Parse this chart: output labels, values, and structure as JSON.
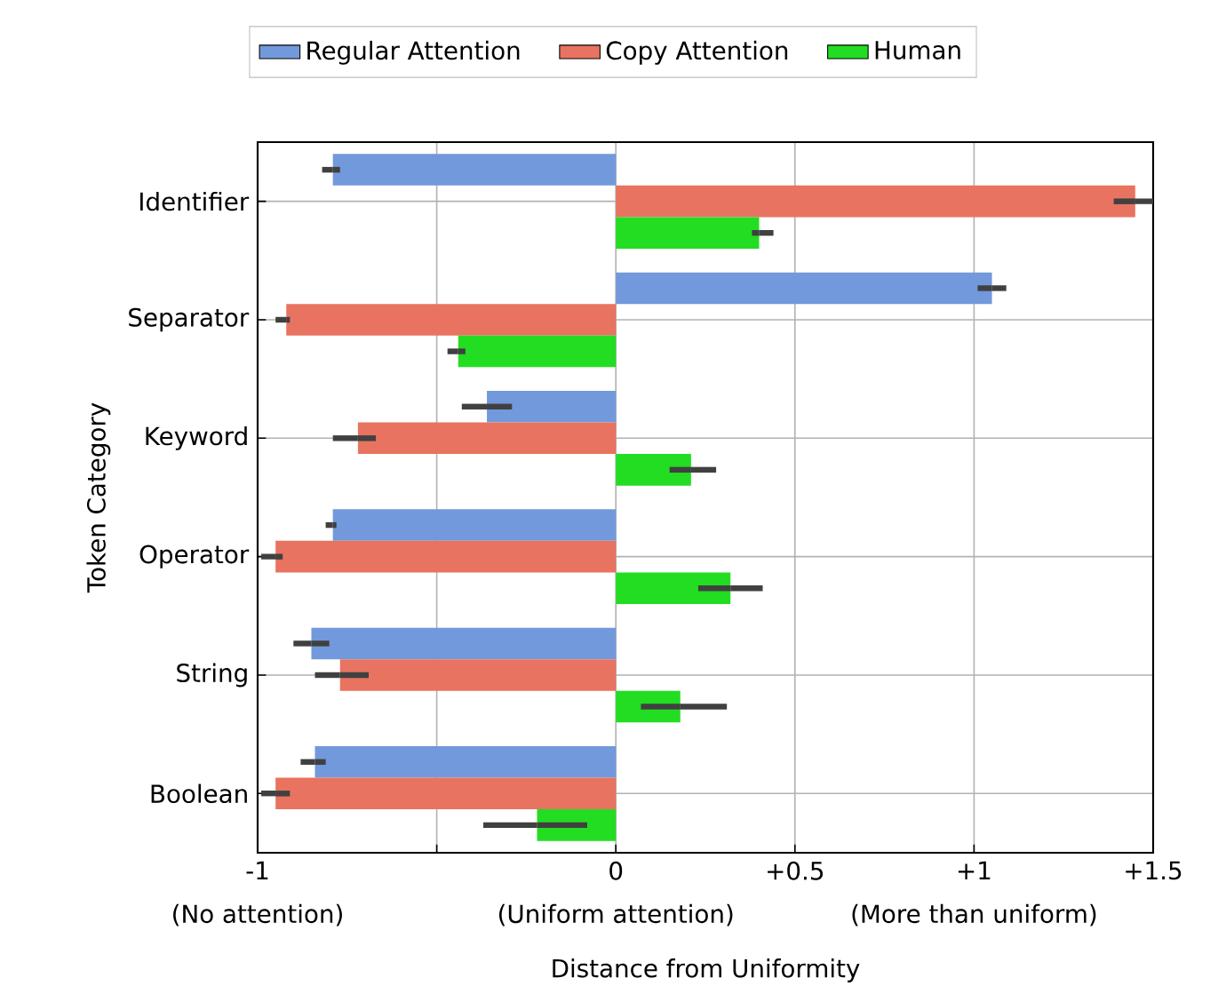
{
  "chart_data": {
    "type": "bar",
    "orientation": "horizontal",
    "xlabel": "Distance from Uniformity",
    "ylabel": "Token Category",
    "categories": [
      "Identifier",
      "Separator",
      "Keyword",
      "Operator",
      "String",
      "Boolean"
    ],
    "series": [
      {
        "name": "Regular Attention",
        "color": "#7299db",
        "values": [
          -0.79,
          1.05,
          -0.36,
          -0.79,
          -0.85,
          -0.84
        ],
        "errors": [
          [
            -0.82,
            -0.77
          ],
          [
            1.01,
            1.09
          ],
          [
            -0.43,
            -0.29
          ],
          [
            -0.81,
            -0.78
          ],
          [
            -0.9,
            -0.8
          ],
          [
            -0.88,
            -0.81
          ]
        ]
      },
      {
        "name": "Copy Attention",
        "color": "#e87360",
        "values": [
          1.45,
          -0.92,
          -0.72,
          -0.95,
          -0.77,
          -0.95
        ],
        "errors": [
          [
            1.39,
            1.5
          ],
          [
            -0.95,
            -0.91
          ],
          [
            -0.79,
            -0.67
          ],
          [
            -0.99,
            -0.93
          ],
          [
            -0.84,
            -0.69
          ],
          [
            -0.99,
            -0.91
          ]
        ]
      },
      {
        "name": "Human",
        "color": "#22dd22",
        "values": [
          0.4,
          -0.44,
          0.21,
          0.32,
          0.18,
          -0.22
        ],
        "errors": [
          [
            0.38,
            0.44
          ],
          [
            -0.47,
            -0.42
          ],
          [
            0.15,
            0.28
          ],
          [
            0.23,
            0.41
          ],
          [
            0.07,
            0.31
          ],
          [
            -0.37,
            -0.08
          ]
        ]
      }
    ],
    "xlim": [
      -1,
      1.5
    ],
    "xticks": [
      {
        "value": -1,
        "label": "-1"
      },
      {
        "value": -0.5,
        "label": null
      },
      0,
      {
        "value": 0.5,
        "label": "+0.5"
      },
      {
        "value": 1,
        "label": "+1"
      },
      {
        "value": 1.5,
        "label": "+1.5"
      }
    ],
    "annotations": [
      "(No attention)",
      "(Uniform attention)",
      "(More than uniform)"
    ],
    "grid": true,
    "legend": "top"
  }
}
